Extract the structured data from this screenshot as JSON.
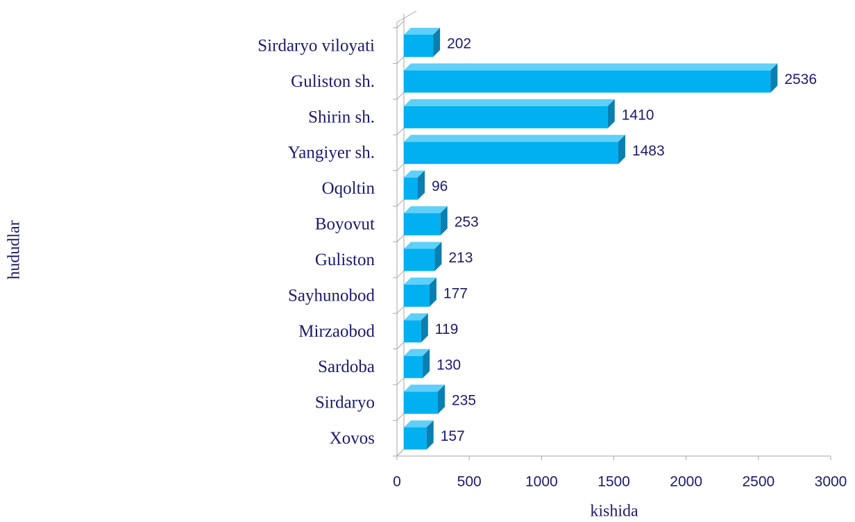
{
  "chart_data": {
    "type": "bar",
    "orientation": "horizontal",
    "three_d": true,
    "categories": [
      "Sirdaryo viloyati",
      "Guliston sh.",
      "Shirin sh.",
      "Yangiyer sh.",
      "Oqoltin",
      "Boyovut",
      "Guliston",
      "Sayhunobod",
      "Mirzaobod",
      "Sardoba",
      "Sirdaryo",
      "Xovos"
    ],
    "values": [
      202,
      2536,
      1410,
      1483,
      96,
      253,
      213,
      177,
      119,
      130,
      235,
      157
    ],
    "color": "#00b0f0",
    "xlim": [
      0,
      3000
    ],
    "xticks": [
      0,
      500,
      1000,
      1500,
      2000,
      2500,
      3000
    ],
    "xlabel": "kishida",
    "ylabel": "hududlar"
  }
}
